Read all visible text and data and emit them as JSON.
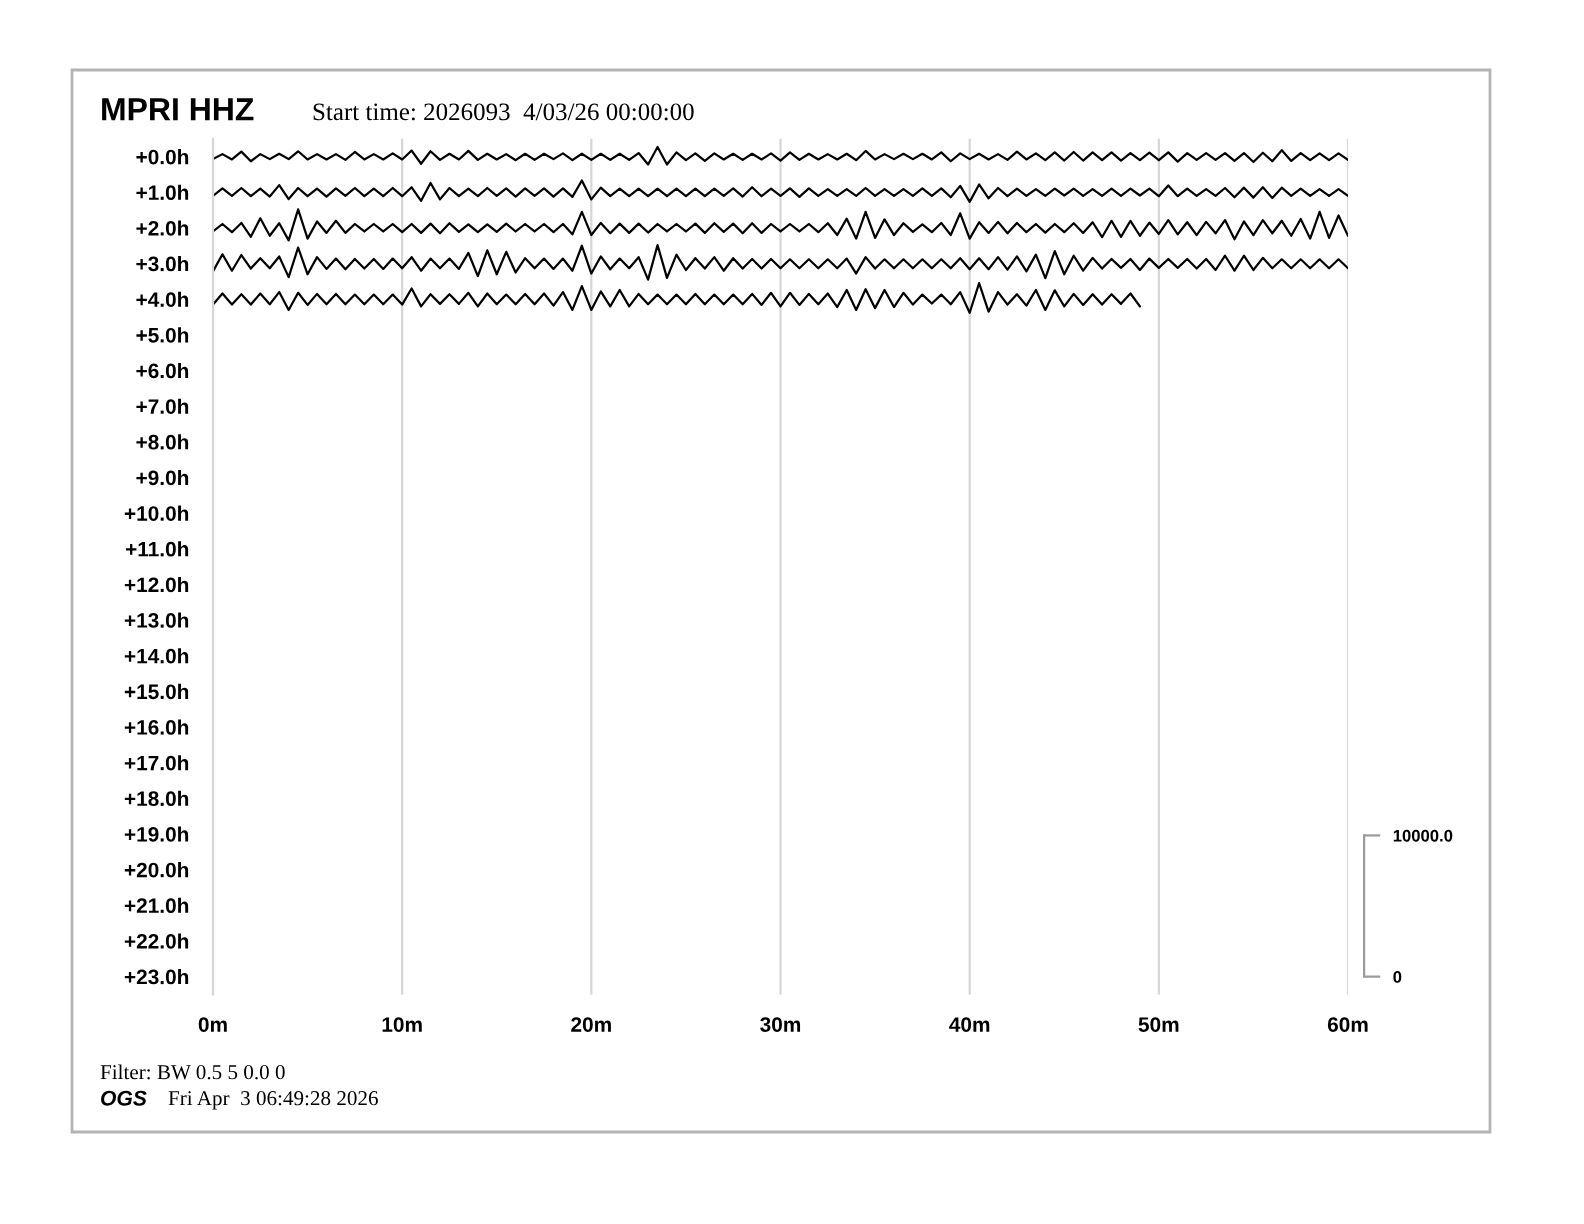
{
  "chart_data": {
    "type": "line",
    "title": "MPRI HHZ",
    "subtitle": "Start time: 2026093  4/03/26 00:00:00",
    "annotations": [
      "Filter: BW 0.5 5 0.0 0",
      "OGS",
      "Fri Apr  3 06:49:28 2026"
    ],
    "x": [
      0,
      0.5,
      1,
      1.5,
      2,
      2.5,
      3,
      3.5,
      4,
      4.5,
      5,
      5.5,
      6,
      6.5,
      7,
      7.5,
      8,
      8.5,
      9,
      9.5,
      10,
      10.5,
      11,
      11.5,
      12,
      12.5,
      13,
      13.5,
      14,
      14.5,
      15,
      15.5,
      16,
      16.5,
      17,
      17.5,
      18,
      18.5,
      19,
      19.5,
      20,
      20.5,
      21,
      21.5,
      22,
      22.5,
      23,
      23.5,
      24,
      24.5,
      25,
      25.5,
      26,
      26.5,
      27,
      27.5,
      28,
      28.5,
      29,
      29.5,
      30,
      30.5,
      31,
      31.5,
      32,
      32.5,
      33,
      33.5,
      34,
      34.5,
      35,
      35.5,
      36,
      36.5,
      37,
      37.5,
      38,
      38.5,
      39,
      39.5,
      40,
      40.5,
      41,
      41.5,
      42,
      42.5,
      43,
      43.5,
      44,
      44.5,
      45,
      45.5,
      46,
      46.5,
      47,
      47.5,
      48,
      48.5,
      49,
      49.5,
      50,
      50.5,
      51,
      51.5,
      52,
      52.5,
      53,
      53.5,
      54,
      54.5,
      55,
      55.5,
      56,
      56.5,
      57,
      57.5,
      58,
      58.5,
      59,
      59.5,
      60
    ],
    "series": [
      {
        "color": "#000000",
        "values": [
          0.07,
          -0.07,
          0.08,
          -0.14,
          0.13,
          -0.07,
          0.07,
          -0.08,
          0.07,
          -0.15,
          0.08,
          -0.07,
          0.08,
          -0.07,
          0.09,
          -0.13,
          0.08,
          -0.07,
          0.08,
          -0.09,
          0.08,
          -0.17,
          0.2,
          -0.15,
          0.09,
          -0.08,
          0.08,
          -0.16,
          0.09,
          -0.08,
          0.08,
          -0.07,
          0.1,
          -0.08,
          0.09,
          -0.08,
          0.07,
          -0.09,
          0.1,
          -0.08,
          0.09,
          -0.08,
          0.09,
          -0.08,
          0.09,
          -0.1,
          0.22,
          -0.27,
          0.22,
          -0.12,
          0.1,
          -0.09,
          0.12,
          -0.09,
          0.08,
          -0.08,
          0.09,
          -0.08,
          0.08,
          -0.09,
          0.11,
          -0.12,
          0.09,
          -0.08,
          0.08,
          -0.07,
          0.08,
          -0.08,
          0.1,
          -0.16,
          0.08,
          -0.07,
          0.07,
          -0.08,
          0.07,
          -0.08,
          0.08,
          -0.12,
          0.13,
          -0.09,
          0.07,
          -0.08,
          0.08,
          -0.07,
          0.09,
          -0.14,
          0.08,
          -0.09,
          0.1,
          -0.12,
          0.11,
          -0.13,
          0.11,
          -0.12,
          0.1,
          -0.12,
          0.11,
          -0.1,
          0.1,
          -0.11,
          0.1,
          -0.12,
          0.14,
          -0.1,
          0.09,
          -0.1,
          0.09,
          -0.1,
          0.12,
          -0.1,
          0.15,
          -0.11,
          0.13,
          -0.18,
          0.12,
          -0.1,
          0.1,
          -0.09,
          0.1,
          -0.09,
          0.09
        ]
      },
      {
        "color": "#000000",
        "values": [
          1.1,
          0.89,
          1.1,
          0.88,
          1.11,
          0.9,
          1.12,
          0.8,
          1.19,
          0.88,
          1.11,
          0.9,
          1.12,
          0.89,
          1.1,
          0.88,
          1.11,
          0.9,
          1.11,
          0.88,
          1.11,
          0.86,
          1.24,
          0.74,
          1.2,
          0.88,
          1.11,
          0.9,
          1.11,
          0.88,
          1.1,
          0.89,
          1.12,
          0.89,
          1.1,
          0.89,
          1.12,
          0.89,
          1.13,
          0.67,
          1.2,
          0.87,
          1.11,
          0.9,
          1.11,
          0.9,
          1.11,
          0.9,
          1.11,
          0.9,
          1.11,
          0.9,
          1.11,
          0.9,
          1.1,
          0.89,
          1.12,
          0.86,
          1.11,
          0.9,
          1.1,
          0.89,
          1.13,
          0.89,
          1.1,
          0.91,
          1.1,
          0.91,
          1.1,
          0.88,
          1.1,
          0.91,
          1.1,
          0.91,
          1.1,
          0.89,
          1.1,
          0.89,
          1.14,
          0.82,
          1.27,
          0.78,
          1.17,
          0.88,
          1.11,
          0.9,
          1.1,
          0.91,
          1.1,
          0.9,
          1.09,
          0.9,
          1.1,
          0.91,
          1.1,
          0.9,
          1.1,
          0.9,
          1.09,
          0.9,
          1.11,
          0.81,
          1.11,
          0.9,
          1.1,
          0.91,
          1.1,
          0.88,
          1.14,
          0.87,
          1.15,
          0.86,
          1.16,
          0.87,
          1.1,
          0.9,
          1.1,
          0.91,
          1.1,
          0.91,
          1.1
        ]
      },
      {
        "color": "#000000",
        "values": [
          2.1,
          1.89,
          2.12,
          1.86,
          2.25,
          1.73,
          2.22,
          1.87,
          2.35,
          1.48,
          2.3,
          1.82,
          2.14,
          1.8,
          2.14,
          1.89,
          2.1,
          1.89,
          2.1,
          1.89,
          2.12,
          1.89,
          2.14,
          1.88,
          2.15,
          1.87,
          2.11,
          1.9,
          2.12,
          1.9,
          2.11,
          1.88,
          2.1,
          1.89,
          2.1,
          1.89,
          2.12,
          1.89,
          2.18,
          1.55,
          2.2,
          1.86,
          2.15,
          1.88,
          2.14,
          1.88,
          2.13,
          1.89,
          2.1,
          1.89,
          2.1,
          1.88,
          2.14,
          1.87,
          2.11,
          1.88,
          2.15,
          1.87,
          2.14,
          1.89,
          2.1,
          1.89,
          2.1,
          1.89,
          2.12,
          1.87,
          2.2,
          1.74,
          2.3,
          1.55,
          2.28,
          1.76,
          2.2,
          1.87,
          2.11,
          1.9,
          2.12,
          1.86,
          2.2,
          1.59,
          2.3,
          1.84,
          2.14,
          1.83,
          2.15,
          1.86,
          2.12,
          1.89,
          2.13,
          1.89,
          2.12,
          1.87,
          2.14,
          1.84,
          2.26,
          1.8,
          2.25,
          1.8,
          2.22,
          1.85,
          2.17,
          1.78,
          2.18,
          1.84,
          2.2,
          1.83,
          2.15,
          1.78,
          2.32,
          1.82,
          2.2,
          1.78,
          2.15,
          1.8,
          2.22,
          1.75,
          2.3,
          1.55,
          2.28,
          1.65,
          2.22
        ]
      },
      {
        "color": "#000000",
        "values": [
          3.22,
          2.74,
          3.2,
          2.76,
          3.14,
          2.85,
          3.13,
          2.8,
          3.38,
          2.55,
          3.3,
          2.82,
          3.15,
          2.86,
          3.16,
          2.87,
          3.14,
          2.87,
          3.15,
          2.86,
          3.13,
          2.82,
          3.2,
          2.86,
          3.13,
          2.86,
          3.15,
          2.7,
          3.35,
          2.63,
          3.3,
          2.67,
          3.25,
          2.85,
          3.13,
          2.86,
          3.15,
          2.86,
          3.2,
          2.5,
          3.28,
          2.8,
          3.16,
          2.86,
          3.13,
          2.82,
          3.45,
          2.48,
          3.4,
          2.75,
          3.18,
          2.85,
          3.14,
          2.82,
          3.2,
          2.85,
          3.14,
          2.87,
          3.14,
          2.87,
          3.13,
          2.88,
          3.13,
          2.88,
          3.13,
          2.88,
          3.13,
          2.86,
          3.28,
          2.82,
          3.14,
          2.88,
          3.13,
          2.88,
          3.13,
          2.88,
          3.13,
          2.88,
          3.13,
          2.85,
          3.16,
          2.85,
          3.16,
          2.82,
          3.17,
          2.8,
          3.22,
          2.75,
          3.41,
          2.65,
          3.3,
          2.78,
          3.2,
          2.84,
          3.14,
          2.87,
          3.12,
          2.87,
          3.18,
          2.86,
          3.12,
          2.87,
          3.12,
          2.87,
          3.14,
          2.87,
          3.18,
          2.78,
          3.2,
          2.78,
          3.18,
          2.84,
          3.13,
          2.88,
          3.13,
          2.88,
          3.13,
          2.88,
          3.13,
          2.88,
          3.13
        ]
      },
      {
        "color": "#000000",
        "x": [
          0,
          0.5,
          1,
          1.5,
          2,
          2.5,
          3,
          3.5,
          4,
          4.5,
          5,
          5.5,
          6,
          6.5,
          7,
          7.5,
          8,
          8.5,
          9,
          9.5,
          10,
          10.5,
          11,
          11.5,
          12,
          12.5,
          13,
          13.5,
          14,
          14.5,
          15,
          15.5,
          16,
          16.5,
          17,
          17.5,
          18,
          18.5,
          19,
          19.5,
          20,
          20.5,
          21,
          21.5,
          22,
          22.5,
          23,
          23.5,
          24,
          24.5,
          25,
          25.5,
          26,
          26.5,
          27,
          27.5,
          28,
          28.5,
          29,
          29.5,
          30,
          30.5,
          31,
          31.5,
          32,
          32.5,
          33,
          33.5,
          34,
          34.5,
          35,
          35.5,
          36,
          36.5,
          37,
          37.5,
          38,
          38.5,
          39,
          39.5,
          40,
          40.5,
          41,
          41.5,
          42,
          42.5,
          43,
          43.5,
          44,
          44.5,
          45,
          45.5,
          46,
          46.5,
          47,
          47.5,
          48,
          48.5,
          49
        ],
        "values": [
          4.15,
          3.84,
          4.15,
          3.86,
          4.15,
          3.84,
          4.14,
          3.8,
          4.3,
          3.82,
          4.16,
          3.85,
          4.14,
          3.85,
          4.14,
          3.87,
          4.14,
          3.87,
          4.14,
          3.87,
          4.15,
          3.7,
          4.2,
          3.86,
          4.13,
          3.86,
          4.13,
          3.82,
          4.2,
          3.84,
          4.14,
          3.87,
          4.14,
          3.85,
          4.14,
          3.84,
          4.18,
          3.8,
          4.3,
          3.63,
          4.3,
          3.78,
          4.2,
          3.74,
          4.2,
          3.85,
          4.14,
          3.87,
          4.14,
          3.87,
          4.14,
          3.85,
          4.14,
          3.87,
          4.14,
          3.87,
          4.14,
          3.85,
          4.16,
          3.82,
          4.2,
          3.82,
          4.16,
          3.85,
          4.14,
          3.84,
          4.22,
          3.74,
          4.3,
          3.72,
          4.25,
          3.74,
          4.22,
          3.82,
          4.15,
          3.87,
          4.12,
          3.87,
          4.14,
          3.8,
          4.38,
          3.55,
          4.35,
          3.8,
          4.15,
          3.86,
          4.18,
          3.74,
          4.3,
          3.75,
          4.2,
          3.85,
          4.16,
          3.86,
          4.15,
          3.86,
          4.13,
          3.84,
          4.2
        ]
      }
    ],
    "xlim": [
      0,
      60
    ],
    "xticks": [
      {
        "value": 0,
        "label": "0m"
      },
      {
        "value": 10,
        "label": "10m"
      },
      {
        "value": 20,
        "label": "20m"
      },
      {
        "value": 30,
        "label": "30m"
      },
      {
        "value": 40,
        "label": "40m"
      },
      {
        "value": 50,
        "label": "50m"
      },
      {
        "value": 60,
        "label": "60m"
      }
    ],
    "ylim": [
      23.5,
      -0.5
    ],
    "yticks": [
      {
        "value": 0,
        "label": "+0.0h"
      },
      {
        "value": 1,
        "label": "+1.0h"
      },
      {
        "value": 2,
        "label": "+2.0h"
      },
      {
        "value": 3,
        "label": "+3.0h"
      },
      {
        "value": 4,
        "label": "+4.0h"
      },
      {
        "value": 5,
        "label": "+5.0h"
      },
      {
        "value": 6,
        "label": "+6.0h"
      },
      {
        "value": 7,
        "label": "+7.0h"
      },
      {
        "value": 8,
        "label": "+8.0h"
      },
      {
        "value": 9,
        "label": "+9.0h"
      },
      {
        "value": 10,
        "label": "+10.0h"
      },
      {
        "value": 11,
        "label": "+11.0h"
      },
      {
        "value": 12,
        "label": "+12.0h"
      },
      {
        "value": 13,
        "label": "+13.0h"
      },
      {
        "value": 14,
        "label": "+14.0h"
      },
      {
        "value": 15,
        "label": "+15.0h"
      },
      {
        "value": 16,
        "label": "+16.0h"
      },
      {
        "value": 17,
        "label": "+17.0h"
      },
      {
        "value": 18,
        "label": "+18.0h"
      },
      {
        "value": 19,
        "label": "+19.0h"
      },
      {
        "value": 20,
        "label": "+20.0h"
      },
      {
        "value": 21,
        "label": "+21.0h"
      },
      {
        "value": 22,
        "label": "+22.0h"
      },
      {
        "value": 23,
        "label": "+23.0h"
      }
    ],
    "y2lim": [
      -1260,
      59340
    ],
    "y2ticks": [
      0,
      {
        "value": 10000,
        "label": "10000.0"
      }
    ],
    "grid": "x"
  }
}
